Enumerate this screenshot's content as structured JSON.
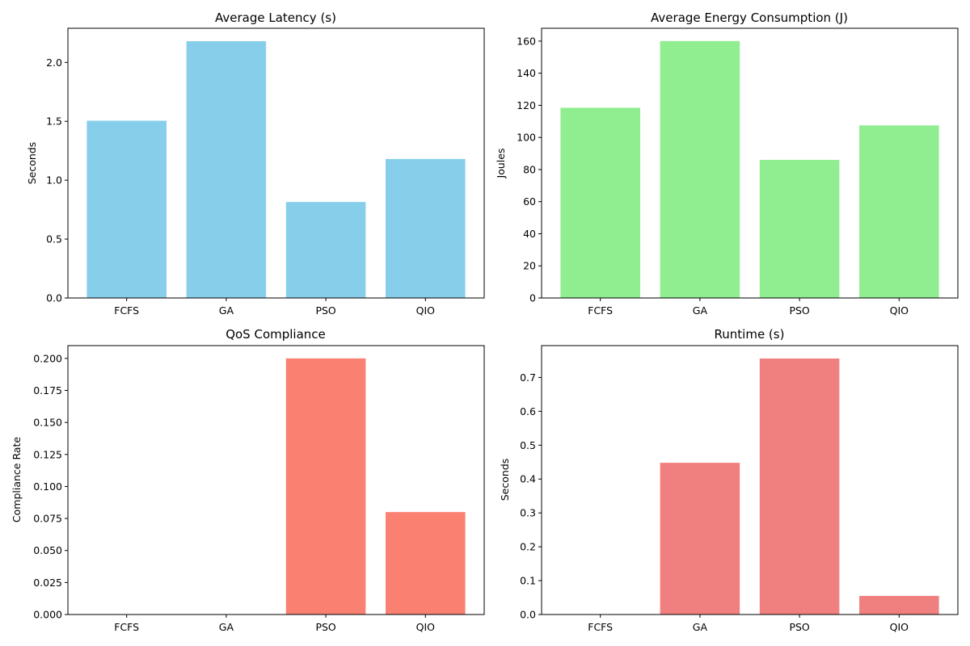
{
  "chart_data": [
    {
      "type": "bar",
      "title": "Average Latency (s)",
      "xlabel": "",
      "ylabel": "Seconds",
      "categories": [
        "FCFS",
        "GA",
        "PSO",
        "QIO"
      ],
      "values": [
        1.505,
        2.18,
        0.815,
        1.18
      ],
      "ylim": [
        0,
        2.29
      ],
      "yticks": [
        0.0,
        0.5,
        1.0,
        1.5,
        2.0
      ],
      "ytick_labels": [
        "0.0",
        "0.5",
        "1.0",
        "1.5",
        "2.0"
      ],
      "color": "#87ceeb",
      "grid": false
    },
    {
      "type": "bar",
      "title": "Average Energy Consumption (J)",
      "xlabel": "",
      "ylabel": "Joules",
      "categories": [
        "FCFS",
        "GA",
        "PSO",
        "QIO"
      ],
      "values": [
        118.5,
        160.0,
        86.0,
        107.5
      ],
      "ylim": [
        0,
        168
      ],
      "yticks": [
        0,
        20,
        40,
        60,
        80,
        100,
        120,
        140,
        160
      ],
      "ytick_labels": [
        "0",
        "20",
        "40",
        "60",
        "80",
        "100",
        "120",
        "140",
        "160"
      ],
      "color": "#90ee90",
      "grid": false
    },
    {
      "type": "bar",
      "title": "QoS Compliance",
      "xlabel": "",
      "ylabel": "Compliance Rate",
      "categories": [
        "FCFS",
        "GA",
        "PSO",
        "QIO"
      ],
      "values": [
        0.0,
        0.0,
        0.2,
        0.08
      ],
      "ylim": [
        0,
        0.21
      ],
      "yticks": [
        0.0,
        0.025,
        0.05,
        0.075,
        0.1,
        0.125,
        0.15,
        0.175,
        0.2
      ],
      "ytick_labels": [
        "0.000",
        "0.025",
        "0.050",
        "0.075",
        "0.100",
        "0.125",
        "0.150",
        "0.175",
        "0.200"
      ],
      "color": "#fa8072",
      "grid": false
    },
    {
      "type": "bar",
      "title": "Runtime (s)",
      "xlabel": "",
      "ylabel": "Seconds",
      "categories": [
        "FCFS",
        "GA",
        "PSO",
        "QIO"
      ],
      "values": [
        0.0,
        0.448,
        0.756,
        0.055
      ],
      "ylim": [
        0,
        0.794
      ],
      "yticks": [
        0.0,
        0.1,
        0.2,
        0.3,
        0.4,
        0.5,
        0.6,
        0.7
      ],
      "ytick_labels": [
        "0.0",
        "0.1",
        "0.2",
        "0.3",
        "0.4",
        "0.5",
        "0.6",
        "0.7"
      ],
      "color": "#f08080",
      "grid": false
    }
  ]
}
